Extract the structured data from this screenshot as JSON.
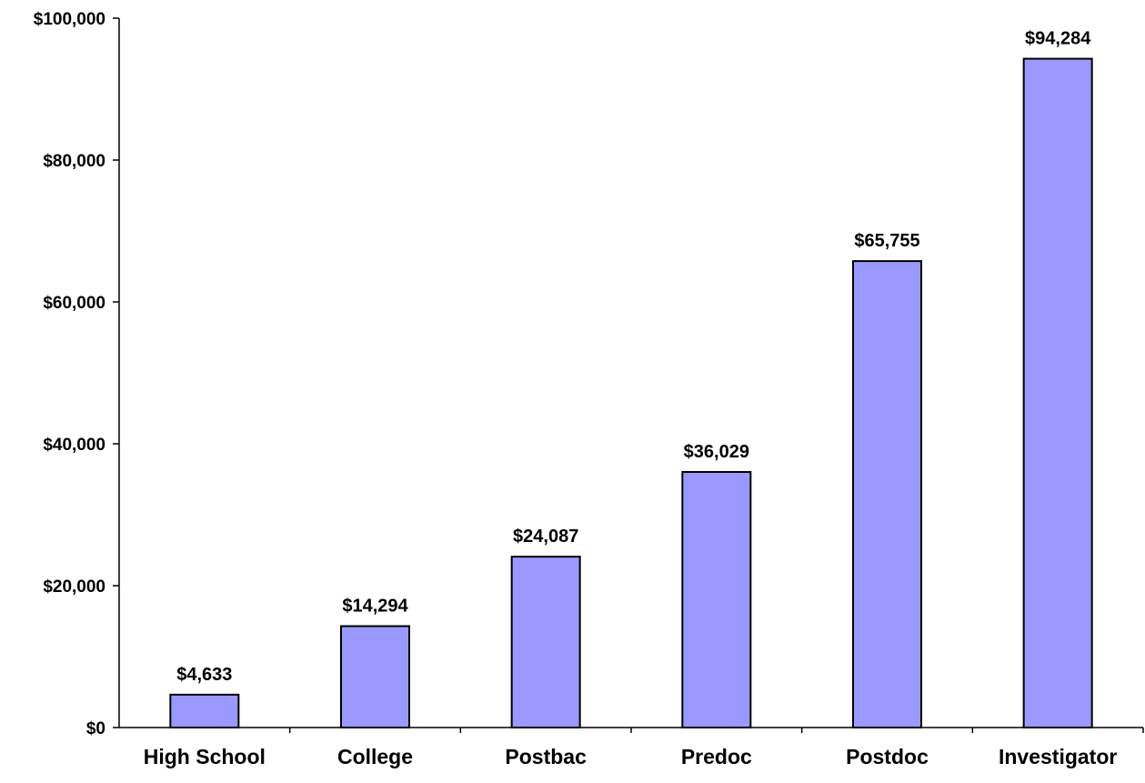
{
  "chart_data": {
    "type": "bar",
    "title": "",
    "xlabel": "",
    "ylabel": "",
    "categories": [
      "High School",
      "College",
      "Postbac",
      "Predoc",
      "Postdoc",
      "Investigator"
    ],
    "values": [
      4633,
      14294,
      24087,
      36029,
      65755,
      94284
    ],
    "value_labels": [
      "$4,633",
      "$14,294",
      "$24,087",
      "$36,029",
      "$65,755",
      "$94,284"
    ],
    "ylim": [
      0,
      100000
    ],
    "yticks": [
      0,
      20000,
      40000,
      60000,
      80000,
      100000
    ],
    "ytick_labels": [
      "$0",
      "$20,000",
      "$40,000",
      "$60,000",
      "$80,000",
      "$100,000"
    ],
    "grid": false,
    "legend": "none",
    "bar_color": "#9999ff",
    "bar_edge_color": "#000000"
  }
}
